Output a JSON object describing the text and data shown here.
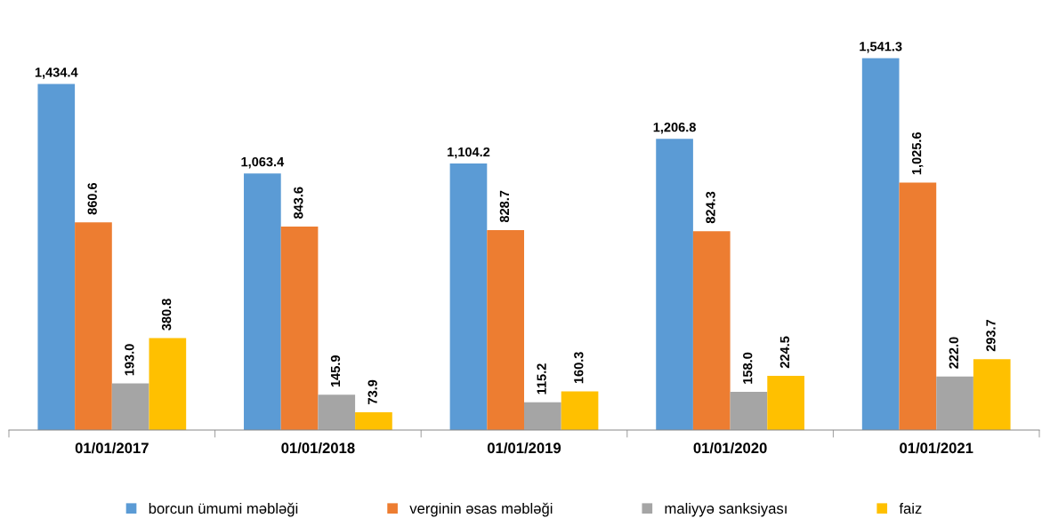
{
  "chart_data": {
    "type": "bar",
    "categories": [
      "01/01/2017",
      "01/01/2018",
      "01/01/2019",
      "01/01/2020",
      "01/01/2021"
    ],
    "series": [
      {
        "name": "borcun ümumi məbləği",
        "color": "#5b9bd5",
        "values": [
          1434.4,
          1063.4,
          1104.2,
          1206.8,
          1541.3
        ],
        "value_labels": [
          "1,434.4",
          "1,063.4",
          "1,104.2",
          "1,206.8",
          "1,541.3"
        ]
      },
      {
        "name": "verginin əsas məbləği",
        "color": "#ed7d31",
        "values": [
          860.6,
          843.6,
          828.7,
          824.3,
          1025.6
        ],
        "value_labels": [
          "860.6",
          "843.6",
          "828.7",
          "824.3",
          "1,025.6"
        ]
      },
      {
        "name": "maliyyə sanksiyası",
        "color": "#a5a5a5",
        "values": [
          193.0,
          145.9,
          115.2,
          158.0,
          222.0
        ],
        "value_labels": [
          "193.0",
          "145.9",
          "115.2",
          "158.0",
          "222.0"
        ]
      },
      {
        "name": "faiz",
        "color": "#ffc000",
        "values": [
          380.8,
          73.9,
          160.3,
          224.5,
          293.7
        ],
        "value_labels": [
          "380.8",
          "73.9",
          "160.3",
          "224.5",
          "293.7"
        ]
      }
    ],
    "legend": "bottom",
    "grid": false
  }
}
